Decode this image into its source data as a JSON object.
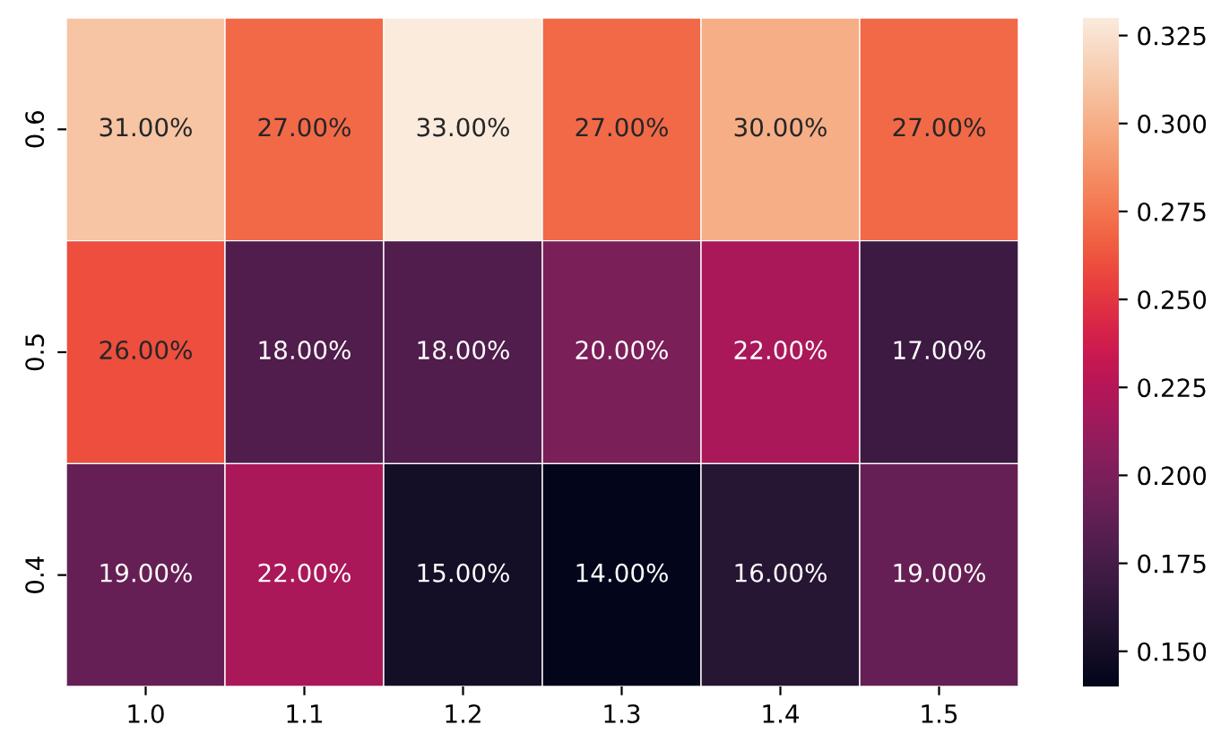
{
  "chart_data": {
    "type": "heatmap",
    "categories": [
      "1.0",
      "1.1",
      "1.2",
      "1.3",
      "1.4",
      "1.5"
    ],
    "y_categories": [
      "0.6",
      "0.5",
      "0.4"
    ],
    "cells": [
      [
        0.31,
        0.27,
        0.33,
        0.27,
        0.3,
        0.27
      ],
      [
        0.26,
        0.18,
        0.18,
        0.2,
        0.22,
        0.17
      ],
      [
        0.19,
        0.22,
        0.15,
        0.14,
        0.16,
        0.19
      ]
    ],
    "cell_labels": [
      [
        "31.00%",
        "27.00%",
        "33.00%",
        "27.00%",
        "30.00%",
        "27.00%"
      ],
      [
        "26.00%",
        "18.00%",
        "18.00%",
        "20.00%",
        "22.00%",
        "17.00%"
      ],
      [
        "19.00%",
        "22.00%",
        "15.00%",
        "14.00%",
        "16.00%",
        "19.00%"
      ]
    ],
    "clim": [
      0.14,
      0.33
    ],
    "cticks": [
      {
        "value": 0.15,
        "label": "0.150"
      },
      {
        "value": 0.175,
        "label": "0.175"
      },
      {
        "value": 0.2,
        "label": "0.200"
      },
      {
        "value": 0.225,
        "label": "0.225"
      },
      {
        "value": 0.25,
        "label": "0.250"
      },
      {
        "value": 0.275,
        "label": "0.275"
      },
      {
        "value": 0.3,
        "label": "0.300"
      },
      {
        "value": 0.325,
        "label": "0.325"
      }
    ]
  }
}
